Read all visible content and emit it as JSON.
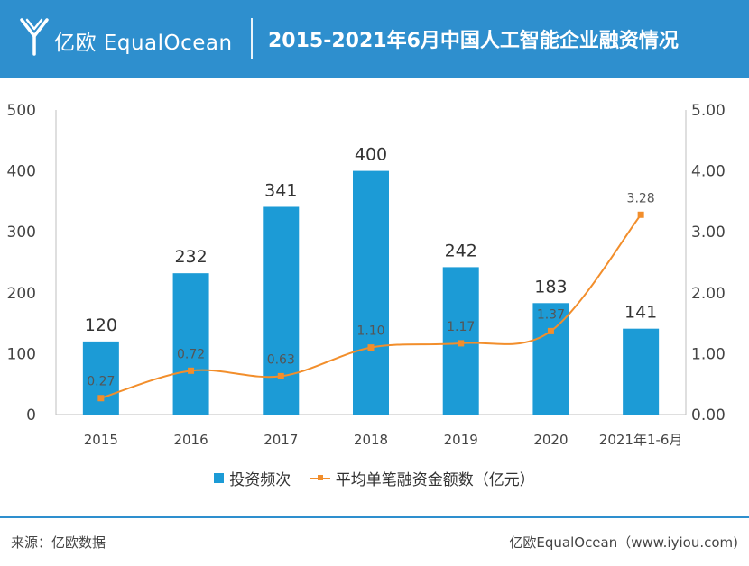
{
  "header": {
    "brand": "亿欧 EqualOcean",
    "title": "2015-2021年6月中国人工智能企业融资情况",
    "colors": {
      "header_bg": "#2e8fce"
    }
  },
  "chart_data": {
    "type": "bar",
    "title": "2015-2021年6月中国人工智能企业融资情况",
    "categories": [
      "2015",
      "2016",
      "2017",
      "2018",
      "2019",
      "2020",
      "2021年1-6月"
    ],
    "series": [
      {
        "name": "投资频次",
        "type": "bar",
        "axis": "left",
        "color": "#1c9bd6",
        "values": [
          120,
          232,
          341,
          400,
          242,
          183,
          141
        ]
      },
      {
        "name": "平均单笔融资金额数（亿元）",
        "type": "line",
        "axis": "right",
        "color": "#f28e2b",
        "values": [
          0.27,
          0.72,
          0.63,
          1.1,
          1.17,
          1.37,
          3.28
        ]
      }
    ],
    "left_axis": {
      "ylim": [
        0,
        500
      ],
      "ticks": [
        "0",
        "100",
        "200",
        "300",
        "400",
        "500"
      ]
    },
    "right_axis": {
      "ylim": [
        0,
        5
      ],
      "ticks": [
        "0.00",
        "1.00",
        "2.00",
        "3.00",
        "4.00",
        "5.00"
      ]
    },
    "grid": false,
    "legend_placement": "bottom"
  },
  "legend": {
    "bar_label": "投资频次",
    "line_label": "平均单笔融资金额数（亿元）"
  },
  "footer": {
    "source": "来源：亿欧数据",
    "site": "亿欧EqualOcean（www.iyiou.com)",
    "colors": {
      "line": "#2e8fce"
    }
  }
}
